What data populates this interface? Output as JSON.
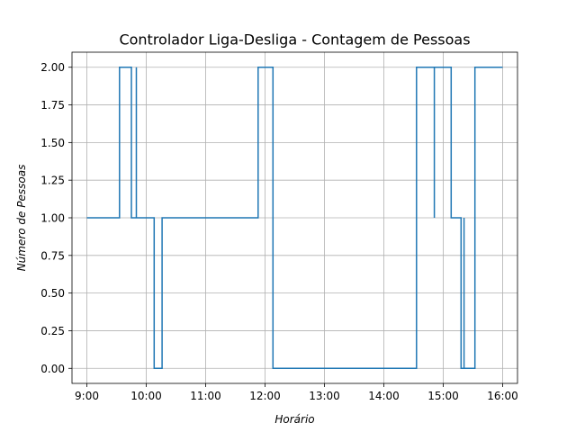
{
  "chart_data": {
    "type": "line",
    "step": "post",
    "title": "Controlador Liga-Desliga - Contagem de Pessoas",
    "xlabel": "Horário",
    "ylabel": "Número de Pessoas",
    "xlim": [
      "08:45",
      "16:15"
    ],
    "ylim": [
      -0.1,
      2.1
    ],
    "xticks": [
      {
        "value": "09:00",
        "label": "9:00"
      },
      {
        "value": "10:00",
        "label": "10:00"
      },
      {
        "value": "11:00",
        "label": "11:00"
      },
      {
        "value": "12:00",
        "label": "12:00"
      },
      {
        "value": "13:00",
        "label": "13:00"
      },
      {
        "value": "14:00",
        "label": "14:00"
      },
      {
        "value": "15:00",
        "label": "15:00"
      },
      {
        "value": "16:00",
        "label": "16:00"
      }
    ],
    "yticks": [
      {
        "value": 0.0,
        "label": "0.00"
      },
      {
        "value": 0.25,
        "label": "0.25"
      },
      {
        "value": 0.5,
        "label": "0.50"
      },
      {
        "value": 0.75,
        "label": "0.75"
      },
      {
        "value": 1.0,
        "label": "1.00"
      },
      {
        "value": 1.25,
        "label": "1.25"
      },
      {
        "value": 1.5,
        "label": "1.50"
      },
      {
        "value": 1.75,
        "label": "1.75"
      },
      {
        "value": 2.0,
        "label": "2.00"
      }
    ],
    "grid": true,
    "series": [
      {
        "color": "#1f77b4",
        "points": [
          {
            "x": "09:00",
            "y": 1
          },
          {
            "x": "09:33",
            "y": 2
          },
          {
            "x": "09:45",
            "y": 1
          },
          {
            "x": "09:50",
            "y": 2
          },
          {
            "x": "09:50",
            "y": 1
          },
          {
            "x": "10:08",
            "y": 0
          },
          {
            "x": "10:16",
            "y": 1
          },
          {
            "x": "11:53",
            "y": 2
          },
          {
            "x": "12:08",
            "y": 0
          },
          {
            "x": "14:33",
            "y": 2
          },
          {
            "x": "14:51",
            "y": 1
          },
          {
            "x": "14:51",
            "y": 2
          },
          {
            "x": "15:08",
            "y": 1
          },
          {
            "x": "15:18",
            "y": 0
          },
          {
            "x": "15:21",
            "y": 1
          },
          {
            "x": "15:21",
            "y": 0
          },
          {
            "x": "15:32",
            "y": 2
          },
          {
            "x": "16:00",
            "y": 2
          }
        ]
      }
    ]
  }
}
